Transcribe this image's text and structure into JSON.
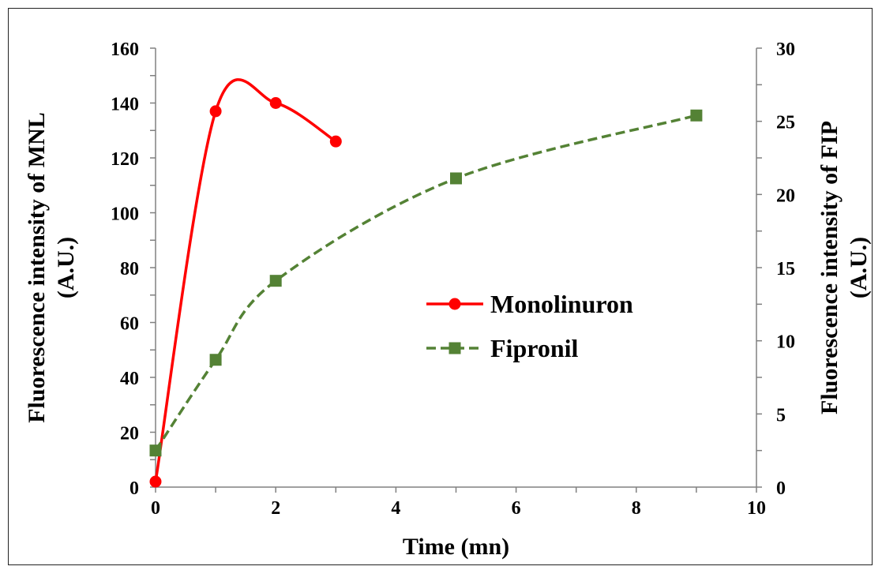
{
  "chart_data": {
    "type": "line",
    "xlabel": "Time (mn)",
    "ylabel_left": [
      "Fluorescence intensity of MNL",
      "(A.U.)"
    ],
    "ylabel_right": [
      "Fluorescence intensity of FIP",
      "(A.U.)"
    ],
    "xlim": [
      0,
      10
    ],
    "ylim_left": [
      0,
      160
    ],
    "ylim_right": [
      0,
      30
    ],
    "x_ticks": [
      "0",
      "2",
      "4",
      "6",
      "8",
      "10"
    ],
    "y_left_ticks": [
      "0",
      "20",
      "40",
      "60",
      "80",
      "100",
      "120",
      "140",
      "160"
    ],
    "y_right_ticks": [
      "0",
      "5",
      "10",
      "15",
      "20",
      "25",
      "30"
    ],
    "grid": false,
    "legend_position": "center-right",
    "series": [
      {
        "name": "Monolinuron",
        "axis": "left",
        "color": "#ff0000",
        "marker": "circle",
        "line_style": "solid",
        "x": [
          0,
          1,
          2,
          3
        ],
        "y": [
          2,
          137,
          140,
          126
        ]
      },
      {
        "name": "Fipronil",
        "axis": "right",
        "color": "#548235",
        "marker": "square",
        "line_style": "dashed",
        "x": [
          0,
          1,
          2,
          5,
          9
        ],
        "y": [
          2.5,
          8.7,
          14.1,
          21.1,
          25.4
        ]
      }
    ]
  }
}
